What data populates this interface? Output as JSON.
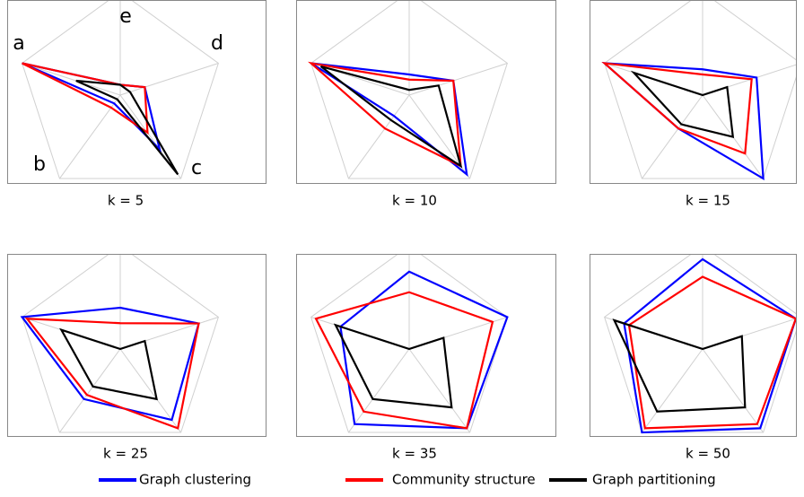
{
  "chart_data": [
    {
      "type": "radar",
      "title": "k = 5",
      "categories": [
        "a",
        "b",
        "c",
        "d",
        "e"
      ],
      "rlim": [
        0,
        1
      ],
      "series": [
        {
          "name": "Graph clustering",
          "color": "#0000ff",
          "values": [
            1.0,
            0.1,
            0.65,
            0.25,
            0.1
          ]
        },
        {
          "name": "Community structure",
          "color": "#ff0000",
          "values": [
            1.0,
            0.15,
            0.45,
            0.25,
            0.1
          ]
        },
        {
          "name": "Graph partitioning",
          "color": "#000000",
          "values": [
            0.45,
            0.05,
            0.95,
            0.1,
            0.1
          ]
        }
      ]
    },
    {
      "type": "radar",
      "title": "k = 10",
      "categories": [
        null,
        null,
        null,
        null,
        null
      ],
      "rlim": [
        0,
        1
      ],
      "series": [
        {
          "color": "#0000ff",
          "values": [
            1.0,
            0.25,
            0.95,
            0.45,
            0.2
          ]
        },
        {
          "color": "#ff0000",
          "values": [
            1.0,
            0.4,
            0.85,
            0.45,
            0.15
          ]
        },
        {
          "color": "#000000",
          "values": [
            0.9,
            0.3,
            0.85,
            0.3,
            0.05
          ]
        }
      ]
    },
    {
      "type": "radar",
      "title": "k = 15",
      "categories": [
        null,
        null,
        null,
        null,
        null
      ],
      "rlim": [
        0,
        1
      ],
      "series": [
        {
          "color": "#0000ff",
          "values": [
            1.0,
            0.4,
            1.0,
            0.55,
            0.25
          ]
        },
        {
          "color": "#ff0000",
          "values": [
            1.0,
            0.4,
            0.7,
            0.5,
            0.2
          ]
        },
        {
          "color": "#000000",
          "values": [
            0.7,
            0.35,
            0.5,
            0.25,
            0.0
          ]
        }
      ]
    },
    {
      "type": "radar",
      "title": "k = 25",
      "categories": [
        null,
        null,
        null,
        null,
        null
      ],
      "rlim": [
        0,
        1
      ],
      "series": [
        {
          "color": "#0000ff",
          "values": [
            1.0,
            0.6,
            0.85,
            0.8,
            0.4
          ]
        },
        {
          "color": "#ff0000",
          "values": [
            0.95,
            0.55,
            0.95,
            0.8,
            0.25
          ]
        },
        {
          "color": "#000000",
          "values": [
            0.6,
            0.45,
            0.6,
            0.25,
            0.0
          ]
        }
      ]
    },
    {
      "type": "radar",
      "title": "k = 35",
      "categories": [
        null,
        null,
        null,
        null,
        null
      ],
      "rlim": [
        0,
        1
      ],
      "series": [
        {
          "color": "#0000ff",
          "values": [
            0.7,
            0.9,
            0.95,
            1.0,
            0.75
          ]
        },
        {
          "color": "#ff0000",
          "values": [
            0.95,
            0.75,
            0.95,
            0.85,
            0.55
          ]
        },
        {
          "color": "#000000",
          "values": [
            0.75,
            0.6,
            0.7,
            0.35,
            0.0
          ]
        }
      ]
    },
    {
      "type": "radar",
      "title": "k = 50",
      "categories": [
        null,
        null,
        null,
        null,
        null
      ],
      "rlim": [
        0,
        1
      ],
      "series": [
        {
          "color": "#0000ff",
          "values": [
            0.8,
            1.0,
            0.95,
            0.95,
            0.87
          ]
        },
        {
          "color": "#ff0000",
          "values": [
            0.75,
            0.95,
            0.9,
            0.95,
            0.7
          ]
        },
        {
          "color": "#000000",
          "values": [
            0.9,
            0.75,
            0.7,
            0.4,
            0.0
          ]
        }
      ]
    }
  ]
}
